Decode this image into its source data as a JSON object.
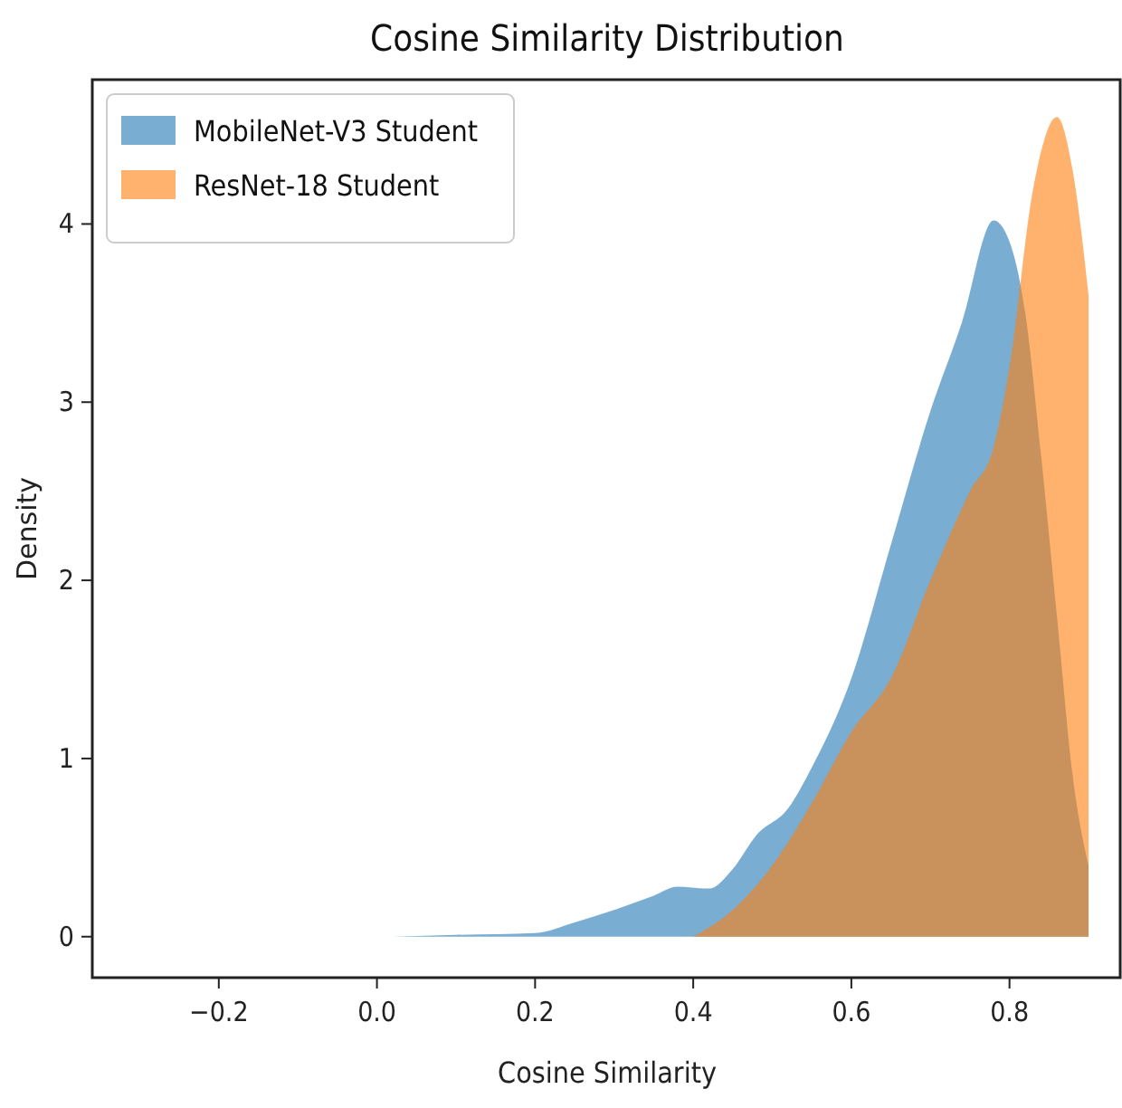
{
  "chart_data": {
    "type": "area",
    "title": "Cosine Similarity Distribution",
    "xlabel": "Cosine Similarity",
    "ylabel": "Density",
    "xlim": [
      -0.36,
      0.94
    ],
    "xticks": [
      {
        "value": -0.2,
        "label": "−0.2"
      },
      {
        "value": 0,
        "label": "0.0"
      },
      {
        "value": 0.2,
        "label": "0.2"
      },
      {
        "value": 0.4,
        "label": "0.4"
      },
      {
        "value": 0.6,
        "label": "0.6"
      },
      {
        "value": 0.8,
        "label": "0.8"
      }
    ],
    "ylim": [
      -0.23,
      4.81
    ],
    "yticks": [
      0,
      1,
      2,
      3,
      4
    ],
    "grid": false,
    "legend": "top left",
    "series": [
      {
        "name": "MobileNet-V3 Student",
        "color": "#1f77b4",
        "x": [
          0.02,
          0.1,
          0.2,
          0.25,
          0.3,
          0.35,
          0.38,
          0.42,
          0.45,
          0.48,
          0.52,
          0.55,
          0.6,
          0.65,
          0.7,
          0.74,
          0.78,
          0.8,
          0.82,
          0.84,
          0.86,
          0.88,
          0.9
        ],
        "values": [
          0,
          0.01,
          0.02,
          0.08,
          0.15,
          0.23,
          0.28,
          0.27,
          0.38,
          0.57,
          0.72,
          0.95,
          1.45,
          2.2,
          2.95,
          3.45,
          4.02,
          3.9,
          3.5,
          2.7,
          1.8,
          0.9,
          0.4
        ]
      },
      {
        "name": "ResNet-18 Student",
        "color": "#ff7f0e",
        "x": [
          0.4,
          0.45,
          0.5,
          0.55,
          0.6,
          0.65,
          0.7,
          0.75,
          0.78,
          0.8,
          0.83,
          0.86,
          0.88,
          0.9
        ],
        "values": [
          0,
          0.15,
          0.4,
          0.75,
          1.15,
          1.45,
          2.0,
          2.5,
          2.75,
          3.2,
          4.2,
          4.6,
          4.3,
          3.6
        ]
      }
    ]
  }
}
